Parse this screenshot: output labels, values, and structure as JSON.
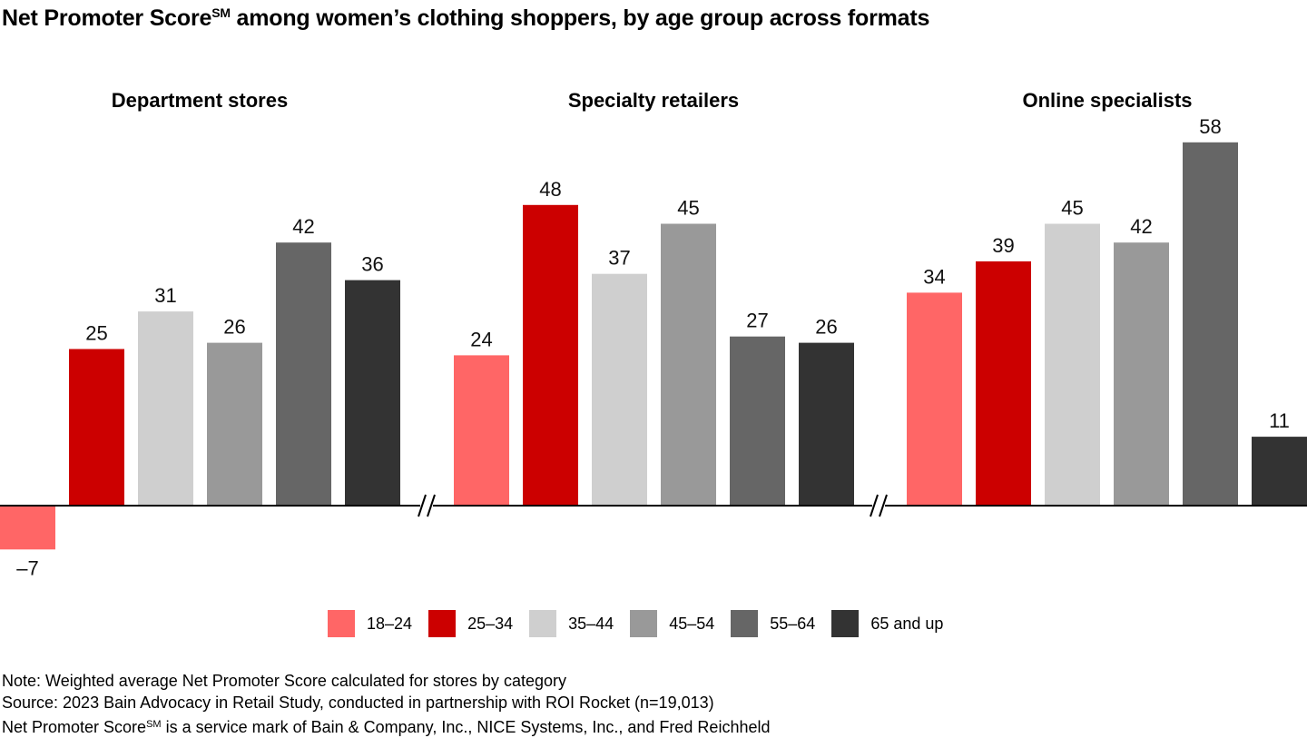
{
  "title": {
    "main": "Net Promoter Score",
    "sup": "SM",
    "rest": " among women’s clothing shoppers, by age group across formats"
  },
  "legend": [
    {
      "label": "18–24",
      "color": "#ff6666"
    },
    {
      "label": "25–34",
      "color": "#cc0000"
    },
    {
      "label": "35–44",
      "color": "#cfcfcf"
    },
    {
      "label": "45–54",
      "color": "#999999"
    },
    {
      "label": "55–64",
      "color": "#666666"
    },
    {
      "label": "65 and up",
      "color": "#333333"
    }
  ],
  "notes": {
    "note": "Note: Weighted average Net Promoter Score calculated for stores by category",
    "source": "Source: 2023 Bain Advocacy in Retail Study, conducted in partnership with ROI Rocket (n=19,013)",
    "mark_main": "Net Promoter Score",
    "mark_sup": "SM",
    "mark_rest": " is a service mark of Bain & Company, Inc., NICE Systems, Inc., and Fred Reichheld"
  },
  "chart_data": {
    "type": "bar",
    "title": "Net Promoter Score℠ among women’s clothing shoppers, by age group across formats",
    "groups": [
      "Department stores",
      "Specialty retailers",
      "Online specialists"
    ],
    "series": [
      {
        "name": "18–24",
        "color": "#ff6666",
        "values": [
          -7,
          24,
          34
        ]
      },
      {
        "name": "25–34",
        "color": "#cc0000",
        "values": [
          25,
          48,
          39
        ]
      },
      {
        "name": "35–44",
        "color": "#cfcfcf",
        "values": [
          31,
          37,
          45
        ]
      },
      {
        "name": "45–54",
        "color": "#999999",
        "values": [
          26,
          45,
          42
        ]
      },
      {
        "name": "55–64",
        "color": "#666666",
        "values": [
          42,
          27,
          58
        ]
      },
      {
        "name": "65 and up",
        "color": "#333333",
        "values": [
          36,
          26,
          11
        ]
      }
    ],
    "value_labels": [
      [
        "–7",
        "25",
        "31",
        "26",
        "42",
        "36"
      ],
      [
        "24",
        "48",
        "37",
        "45",
        "27",
        "26"
      ],
      [
        "34",
        "39",
        "45",
        "42",
        "58",
        "11"
      ]
    ],
    "axis_breaks": true,
    "legend_position": "bottom"
  }
}
